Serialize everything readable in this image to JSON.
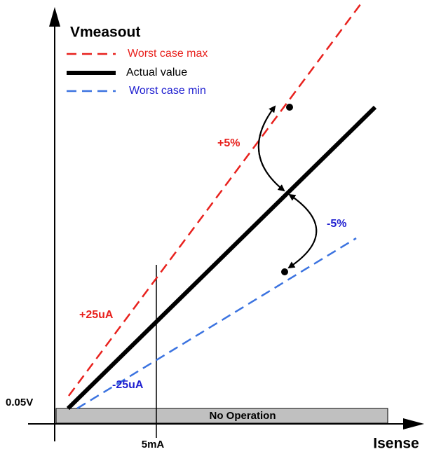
{
  "title": "Vmeasout",
  "legend": [
    "Worst case max",
    "Actual value",
    "Worst case min"
  ],
  "annotations": {
    "plus_pct": "+5%",
    "minus_pct": "-5%",
    "plus_offset": "+25uA",
    "minus_offset": "-25uA",
    "min_voltage": "0.05V",
    "band": "No Operation",
    "current_mark": "5mA"
  },
  "x_axis_label": "Isense"
}
